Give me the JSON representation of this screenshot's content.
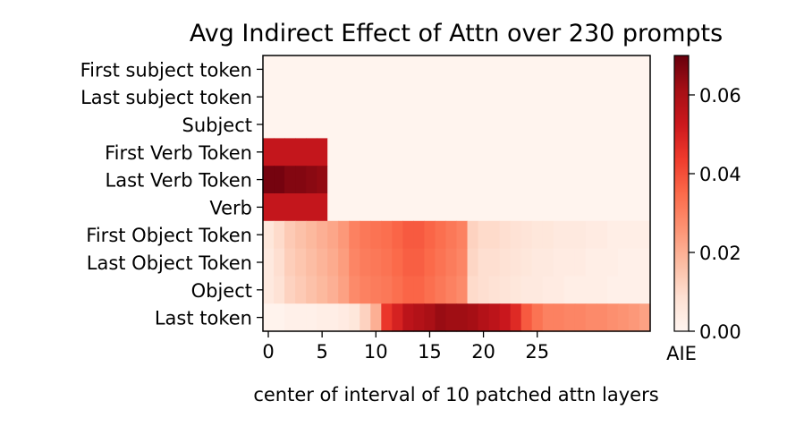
{
  "chart_data": {
    "type": "heatmap",
    "title": "Avg Indirect Effect of Attn over 230 prompts",
    "xlabel": "center of interval of 10 patched attn layers",
    "ylabel": "",
    "rows": [
      "First subject token",
      "Last subject token",
      "Subject",
      "First Verb Token",
      "Last Verb Token",
      "Verb",
      "First Object Token",
      "Last Object Token",
      "Object",
      "Last token"
    ],
    "x_ticks": [
      0,
      5,
      10,
      15,
      20,
      25
    ],
    "x_tick_labels": [
      "0",
      "5",
      "10",
      "15",
      "20",
      "25"
    ],
    "n_columns": 36,
    "colorbar": {
      "label": "AIE",
      "range": [
        0.0,
        0.07
      ],
      "ticks": [
        0.0,
        0.02,
        0.04,
        0.06
      ],
      "tick_labels": [
        "0.00",
        "0.02",
        "0.04",
        "0.06"
      ]
    },
    "colormap": [
      "#fff5f0",
      "#fee0d2",
      "#fcbba1",
      "#fc9272",
      "#fb6a4a",
      "#ef3b2c",
      "#cb181d",
      "#a50f15",
      "#67000d"
    ],
    "values": [
      [
        0.0005,
        0.0005,
        0.0005,
        0.0005,
        0.0005,
        0.0005,
        0.0005,
        0.0005,
        0.0005,
        0.0005,
        0.0005,
        0.0005,
        0.0005,
        0.0005,
        0.0005,
        0.0005,
        0.0005,
        0.0005,
        0.0005,
        0.0005,
        0.0005,
        0.0005,
        0.0005,
        0.0005,
        0.0005,
        0.0005,
        0.0005,
        0.0005,
        0.0005,
        0.0005,
        0.0005,
        0.0005,
        0.0005,
        0.0005,
        0.0005,
        0.0005
      ],
      [
        0.0005,
        0.0005,
        0.0005,
        0.0005,
        0.0005,
        0.0005,
        0.0005,
        0.0005,
        0.0005,
        0.0005,
        0.0005,
        0.0005,
        0.0005,
        0.0005,
        0.0005,
        0.0005,
        0.0005,
        0.0005,
        0.0005,
        0.0005,
        0.0005,
        0.0005,
        0.0005,
        0.0005,
        0.0005,
        0.0005,
        0.0005,
        0.0005,
        0.0005,
        0.0005,
        0.0005,
        0.0005,
        0.0005,
        0.0005,
        0.0005,
        0.0005
      ],
      [
        0.0005,
        0.0005,
        0.0005,
        0.0005,
        0.0005,
        0.0005,
        0.0005,
        0.0005,
        0.0005,
        0.0005,
        0.0005,
        0.0005,
        0.0005,
        0.0005,
        0.0005,
        0.0005,
        0.0005,
        0.0005,
        0.0005,
        0.0005,
        0.0005,
        0.0005,
        0.0005,
        0.0005,
        0.0005,
        0.0005,
        0.0005,
        0.0005,
        0.0005,
        0.0005,
        0.0005,
        0.0005,
        0.0005,
        0.0005,
        0.0005,
        0.0005
      ],
      [
        0.054,
        0.054,
        0.054,
        0.054,
        0.054,
        0.054,
        0.0005,
        0.0005,
        0.0005,
        0.0005,
        0.0005,
        0.0005,
        0.0005,
        0.0005,
        0.0005,
        0.0005,
        0.0005,
        0.0005,
        0.0005,
        0.0005,
        0.0005,
        0.0005,
        0.0005,
        0.0005,
        0.0005,
        0.0005,
        0.0005,
        0.0005,
        0.0005,
        0.0005,
        0.0005,
        0.0005,
        0.0005,
        0.0005,
        0.0005,
        0.0005
      ],
      [
        0.068,
        0.068,
        0.066,
        0.066,
        0.065,
        0.064,
        0.0005,
        0.0005,
        0.0005,
        0.0005,
        0.0005,
        0.0005,
        0.0005,
        0.0005,
        0.0005,
        0.0005,
        0.0005,
        0.0005,
        0.0005,
        0.0005,
        0.0005,
        0.0005,
        0.0005,
        0.0005,
        0.0005,
        0.0005,
        0.0005,
        0.0005,
        0.0005,
        0.0005,
        0.0005,
        0.0005,
        0.0005,
        0.0005,
        0.0005,
        0.0005
      ],
      [
        0.054,
        0.054,
        0.054,
        0.054,
        0.054,
        0.054,
        0.0005,
        0.0005,
        0.0005,
        0.0005,
        0.0005,
        0.0005,
        0.0005,
        0.0005,
        0.0005,
        0.0005,
        0.0005,
        0.0005,
        0.0005,
        0.0005,
        0.0005,
        0.0005,
        0.0005,
        0.0005,
        0.0005,
        0.0005,
        0.0005,
        0.0005,
        0.0005,
        0.0005,
        0.0005,
        0.0005,
        0.0005,
        0.0005,
        0.0005,
        0.0005
      ],
      [
        0.006,
        0.01,
        0.014,
        0.016,
        0.018,
        0.02,
        0.022,
        0.025,
        0.03,
        0.032,
        0.033,
        0.034,
        0.036,
        0.038,
        0.038,
        0.036,
        0.034,
        0.032,
        0.03,
        0.012,
        0.01,
        0.01,
        0.009,
        0.008,
        0.007,
        0.006,
        0.006,
        0.005,
        0.005,
        0.005,
        0.004,
        0.004,
        0.003,
        0.003,
        0.003,
        0.003
      ],
      [
        0.005,
        0.009,
        0.013,
        0.015,
        0.017,
        0.019,
        0.021,
        0.024,
        0.029,
        0.031,
        0.032,
        0.033,
        0.035,
        0.037,
        0.037,
        0.035,
        0.033,
        0.031,
        0.029,
        0.011,
        0.009,
        0.009,
        0.008,
        0.007,
        0.006,
        0.005,
        0.005,
        0.004,
        0.004,
        0.004,
        0.003,
        0.003,
        0.003,
        0.002,
        0.002,
        0.002
      ],
      [
        0.005,
        0.008,
        0.012,
        0.014,
        0.016,
        0.018,
        0.02,
        0.023,
        0.028,
        0.03,
        0.031,
        0.032,
        0.034,
        0.036,
        0.036,
        0.034,
        0.032,
        0.03,
        0.028,
        0.01,
        0.009,
        0.008,
        0.007,
        0.006,
        0.005,
        0.005,
        0.004,
        0.004,
        0.003,
        0.003,
        0.003,
        0.003,
        0.002,
        0.002,
        0.002,
        0.002
      ],
      [
        0.001,
        0.001,
        0.002,
        0.002,
        0.002,
        0.003,
        0.003,
        0.004,
        0.006,
        0.012,
        0.02,
        0.045,
        0.05,
        0.056,
        0.058,
        0.06,
        0.063,
        0.062,
        0.062,
        0.061,
        0.058,
        0.056,
        0.053,
        0.048,
        0.038,
        0.033,
        0.03,
        0.03,
        0.029,
        0.029,
        0.028,
        0.028,
        0.027,
        0.026,
        0.025,
        0.023
      ]
    ]
  }
}
